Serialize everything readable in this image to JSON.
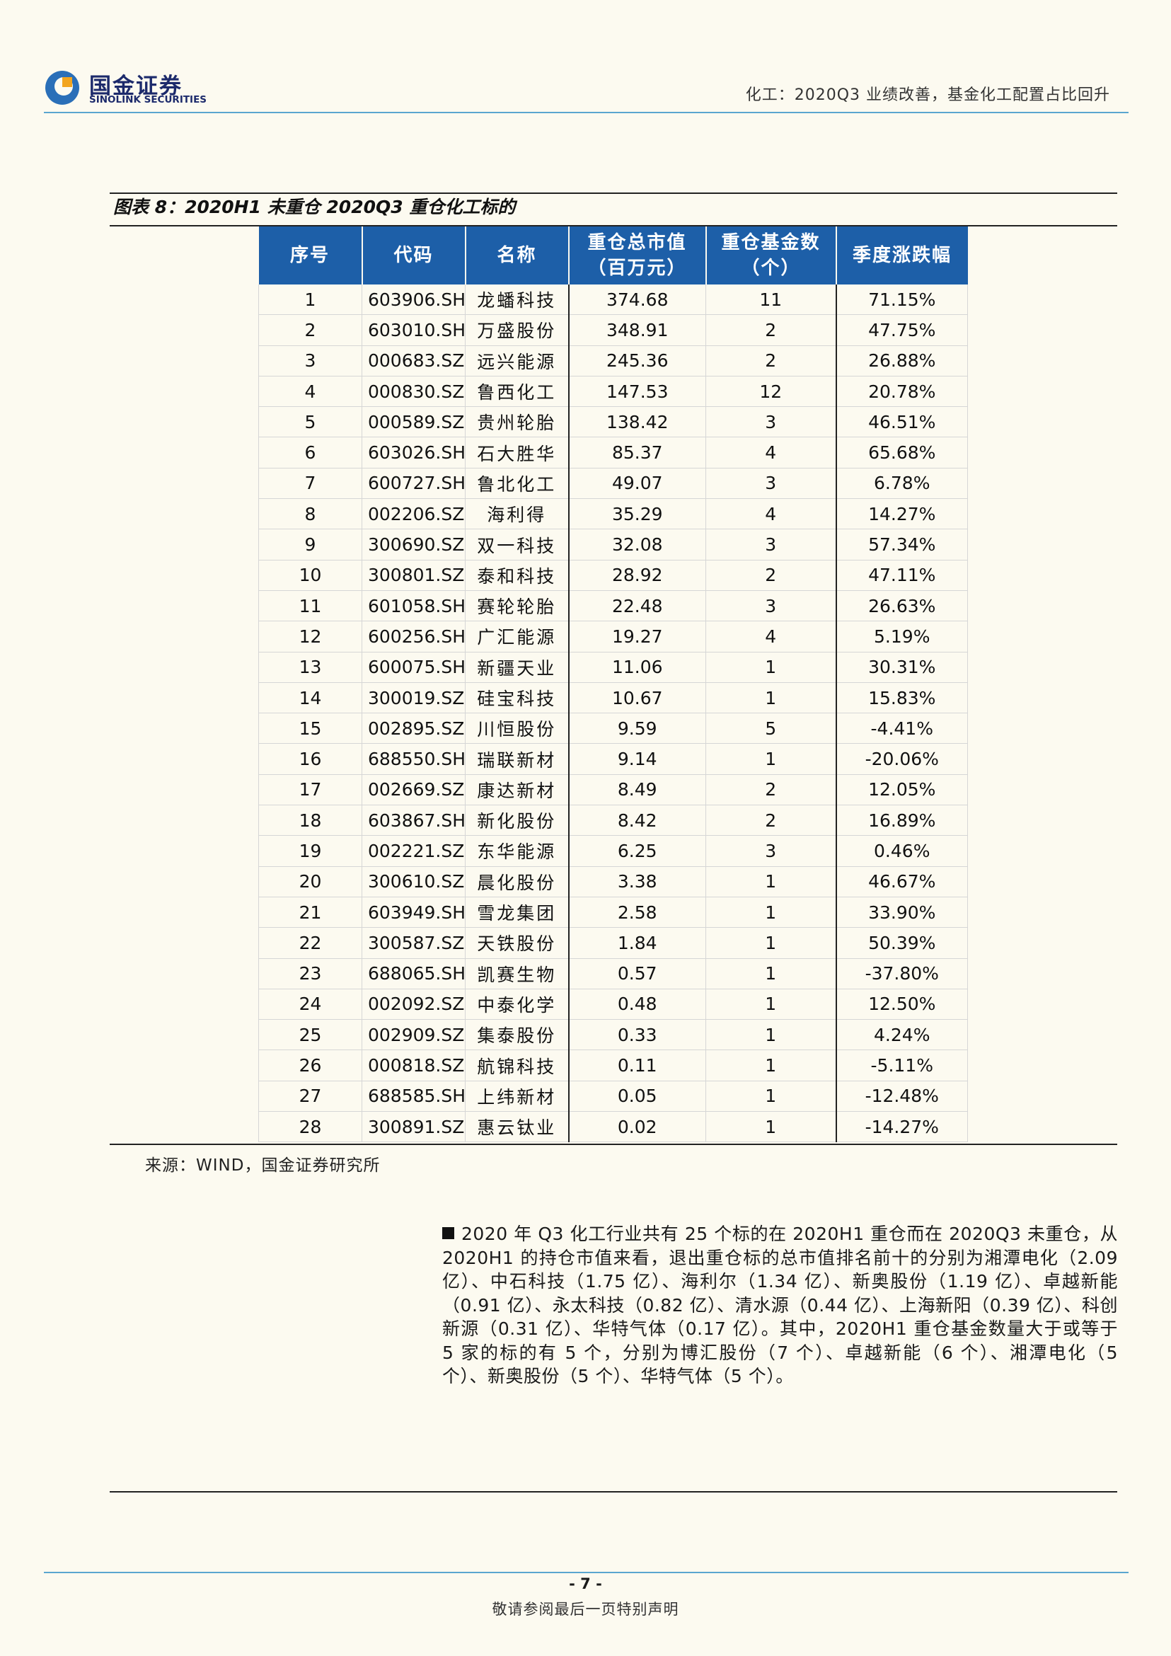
{
  "header": {
    "logo_cn": "国金证券",
    "logo_en": "SINOLINK SECURITIES",
    "report_title": "化工：2020Q3 业绩改善，基金化工配置占比回升"
  },
  "figure": {
    "title": "图表 8：2020H1 未重仓 2020Q3 重仓化工标的",
    "columns": [
      "序号",
      "代码",
      "名称",
      "重仓总市值(百万元)",
      "重仓基金数(个)",
      "季度涨跌幅"
    ],
    "col_headers": {
      "no": "序号",
      "code": "代码",
      "name": "名称",
      "mv_line1": "重仓总市值",
      "mv_line2": "（百万元）",
      "funds_line1": "重仓基金数",
      "funds_line2": "（个）",
      "chg": "季度涨跌幅"
    },
    "rows": [
      {
        "no": "1",
        "code": "603906.SH",
        "name": "龙蟠科技",
        "mv": "374.68",
        "funds": "11",
        "chg": "71.15%"
      },
      {
        "no": "2",
        "code": "603010.SH",
        "name": "万盛股份",
        "mv": "348.91",
        "funds": "2",
        "chg": "47.75%"
      },
      {
        "no": "3",
        "code": "000683.SZ",
        "name": "远兴能源",
        "mv": "245.36",
        "funds": "2",
        "chg": "26.88%"
      },
      {
        "no": "4",
        "code": "000830.SZ",
        "name": "鲁西化工",
        "mv": "147.53",
        "funds": "12",
        "chg": "20.78%"
      },
      {
        "no": "5",
        "code": "000589.SZ",
        "name": "贵州轮胎",
        "mv": "138.42",
        "funds": "3",
        "chg": "46.51%"
      },
      {
        "no": "6",
        "code": "603026.SH",
        "name": "石大胜华",
        "mv": "85.37",
        "funds": "4",
        "chg": "65.68%"
      },
      {
        "no": "7",
        "code": "600727.SH",
        "name": "鲁北化工",
        "mv": "49.07",
        "funds": "3",
        "chg": "6.78%"
      },
      {
        "no": "8",
        "code": "002206.SZ",
        "name": "海利得",
        "mv": "35.29",
        "funds": "4",
        "chg": "14.27%"
      },
      {
        "no": "9",
        "code": "300690.SZ",
        "name": "双一科技",
        "mv": "32.08",
        "funds": "3",
        "chg": "57.34%"
      },
      {
        "no": "10",
        "code": "300801.SZ",
        "name": "泰和科技",
        "mv": "28.92",
        "funds": "2",
        "chg": "47.11%"
      },
      {
        "no": "11",
        "code": "601058.SH",
        "name": "赛轮轮胎",
        "mv": "22.48",
        "funds": "3",
        "chg": "26.63%"
      },
      {
        "no": "12",
        "code": "600256.SH",
        "name": "广汇能源",
        "mv": "19.27",
        "funds": "4",
        "chg": "5.19%"
      },
      {
        "no": "13",
        "code": "600075.SH",
        "name": "新疆天业",
        "mv": "11.06",
        "funds": "1",
        "chg": "30.31%"
      },
      {
        "no": "14",
        "code": "300019.SZ",
        "name": "硅宝科技",
        "mv": "10.67",
        "funds": "1",
        "chg": "15.83%"
      },
      {
        "no": "15",
        "code": "002895.SZ",
        "name": "川恒股份",
        "mv": "9.59",
        "funds": "5",
        "chg": "-4.41%"
      },
      {
        "no": "16",
        "code": "688550.SH",
        "name": "瑞联新材",
        "mv": "9.14",
        "funds": "1",
        "chg": "-20.06%"
      },
      {
        "no": "17",
        "code": "002669.SZ",
        "name": "康达新材",
        "mv": "8.49",
        "funds": "2",
        "chg": "12.05%"
      },
      {
        "no": "18",
        "code": "603867.SH",
        "name": "新化股份",
        "mv": "8.42",
        "funds": "2",
        "chg": "16.89%"
      },
      {
        "no": "19",
        "code": "002221.SZ",
        "name": "东华能源",
        "mv": "6.25",
        "funds": "3",
        "chg": "0.46%"
      },
      {
        "no": "20",
        "code": "300610.SZ",
        "name": "晨化股份",
        "mv": "3.38",
        "funds": "1",
        "chg": "46.67%"
      },
      {
        "no": "21",
        "code": "603949.SH",
        "name": "雪龙集团",
        "mv": "2.58",
        "funds": "1",
        "chg": "33.90%"
      },
      {
        "no": "22",
        "code": "300587.SZ",
        "name": "天铁股份",
        "mv": "1.84",
        "funds": "1",
        "chg": "50.39%"
      },
      {
        "no": "23",
        "code": "688065.SH",
        "name": "凯赛生物",
        "mv": "0.57",
        "funds": "1",
        "chg": "-37.80%"
      },
      {
        "no": "24",
        "code": "002092.SZ",
        "name": "中泰化学",
        "mv": "0.48",
        "funds": "1",
        "chg": "12.50%"
      },
      {
        "no": "25",
        "code": "002909.SZ",
        "name": "集泰股份",
        "mv": "0.33",
        "funds": "1",
        "chg": "4.24%"
      },
      {
        "no": "26",
        "code": "000818.SZ",
        "name": "航锦科技",
        "mv": "0.11",
        "funds": "1",
        "chg": "-5.11%"
      },
      {
        "no": "27",
        "code": "688585.SH",
        "name": "上纬新材",
        "mv": "0.05",
        "funds": "1",
        "chg": "-12.48%"
      },
      {
        "no": "28",
        "code": "300891.SZ",
        "name": "惠云钛业",
        "mv": "0.02",
        "funds": "1",
        "chg": "-14.27%"
      }
    ],
    "source": "来源：WIND，国金证券研究所"
  },
  "body": {
    "paragraph": "2020 年 Q3 化工行业共有 25 个标的在 2020H1 重仓而在 2020Q3 未重仓，从 2020H1 的持仓市值来看，退出重仓标的总市值排名前十的分别为湘潭电化（2.09 亿）、中石科技（1.75 亿）、海利尔（1.34 亿）、新奥股份（1.19 亿）、卓越新能（0.91 亿）、永太科技（0.82 亿）、清水源（0.44 亿）、上海新阳（0.39 亿）、科创新源（0.31 亿）、华特气体（0.17 亿）。其中，2020H1 重仓基金数量大于或等于 5 家的标的有 5 个，分别为博汇股份（7 个）、卓越新能（6 个）、湘潭电化（5 个）、新奥股份（5 个）、华特气体（5 个）。"
  },
  "footer": {
    "page_number": "- 7 -",
    "note": "敬请参阅最后一页特别声明"
  },
  "colors": {
    "header_blue": "#1d5fa8",
    "accent_line": "#5aa6cf",
    "brand_navy": "#1c2a6b",
    "page_bg": "#fcfaf0"
  }
}
